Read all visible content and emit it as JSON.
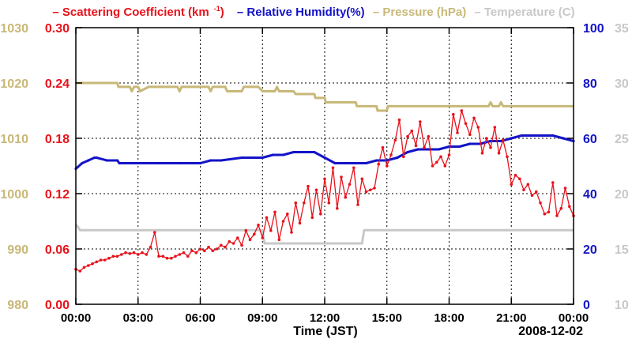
{
  "chart_data": {
    "type": "line",
    "title": "",
    "legend": [
      {
        "label": "– Scattering Coefficient (km",
        "sup": "-1",
        "tail": ")",
        "color": "#e8121b"
      },
      {
        "label": "– Relative Humidity(%)",
        "color": "#1313c8"
      },
      {
        "label": "– Pressure (hPa)",
        "color": "#c8b878"
      },
      {
        "label": "– Temperature (C)",
        "color": "#c8c8c8"
      }
    ],
    "xlabel": "Time (JST)",
    "date_label": "2008-12-02",
    "x_ticks": [
      "00:00",
      "03:00",
      "06:00",
      "09:00",
      "12:00",
      "15:00",
      "18:00",
      "21:00",
      "00:00"
    ],
    "xlim_hours": [
      0,
      24
    ],
    "axes": {
      "pressure": {
        "ticks": [
          "980",
          "990",
          "1000",
          "1010",
          "1020",
          "1030"
        ],
        "range": [
          980,
          1030
        ],
        "color": "#c8b878"
      },
      "scattering": {
        "ticks": [
          "0.00",
          "0.06",
          "0.12",
          "0.18",
          "0.24",
          "0.30"
        ],
        "range": [
          0,
          0.3
        ],
        "color": "#e8121b"
      },
      "humidity": {
        "ticks": [
          "0",
          "20",
          "40",
          "60",
          "80",
          "100"
        ],
        "range": [
          0,
          100
        ],
        "color": "#1313c8"
      },
      "temperature": {
        "ticks": [
          "10",
          "15",
          "20",
          "25",
          "30",
          "35"
        ],
        "range": [
          10,
          35
        ],
        "color": "#c8c8c8"
      }
    },
    "series": [
      {
        "name": "Pressure (hPa)",
        "axis": "pressure",
        "color": "#c8b878",
        "x": [
          0,
          2,
          2.05,
          2.6,
          2.7,
          2.8,
          3.0,
          3.1,
          3.5,
          4.9,
          5.0,
          5.1,
          6.4,
          6.5,
          6.6,
          7.2,
          7.3,
          8.0,
          8.1,
          8.8,
          9.0,
          9.1,
          9.6,
          9.7,
          9.8,
          10.5,
          10.6,
          11.5,
          11.55,
          12.0,
          12.05,
          12.5,
          13.5,
          13.55,
          14.5,
          14.55,
          14.8,
          15.0,
          15.05,
          19.9,
          20.0,
          20.1,
          20.4,
          20.5,
          20.6,
          24
        ],
        "y": [
          1020,
          1020,
          1019.3,
          1019.3,
          1018.5,
          1019.3,
          1019.3,
          1018.5,
          1019.3,
          1019.3,
          1018.5,
          1019.3,
          1019.3,
          1018.5,
          1019.3,
          1019.3,
          1018.5,
          1018.5,
          1019.3,
          1019.3,
          1018.5,
          1018.5,
          1018.5,
          1019.3,
          1018.5,
          1018.5,
          1018.0,
          1018.0,
          1017.3,
          1017.3,
          1016.5,
          1016.5,
          1016.5,
          1015.8,
          1015.8,
          1015.0,
          1015.0,
          1015.0,
          1015.8,
          1015.8,
          1016.5,
          1015.8,
          1015.8,
          1016.5,
          1015.8,
          1015.8
        ]
      },
      {
        "name": "Temperature (C)",
        "axis": "temperature",
        "color": "#c8c8c8",
        "x": [
          0,
          0.1,
          0.2,
          9.0,
          9.1,
          9.5,
          9.6,
          13.8,
          13.9,
          24
        ],
        "y": [
          17.2,
          17.0,
          16.7,
          16.7,
          15.5,
          15.5,
          15.5,
          15.5,
          16.7,
          16.7
        ]
      },
      {
        "name": "Relative Humidity(%)",
        "axis": "humidity",
        "color": "#1313c8",
        "x": [
          0,
          0.3,
          0.6,
          0.9,
          1.0,
          1.5,
          2.0,
          2.1,
          3.0,
          4.0,
          5.0,
          6.0,
          6.5,
          7.0,
          8.0,
          8.5,
          9.0,
          9.5,
          10.0,
          10.5,
          11.0,
          11.5,
          12.0,
          12.5,
          13.0,
          13.5,
          14.0,
          14.5,
          15.0,
          15.5,
          16.0,
          16.5,
          17.0,
          17.5,
          18.0,
          18.5,
          19.0,
          19.5,
          20.0,
          20.5,
          21.0,
          21.5,
          22.0,
          22.5,
          23.0,
          23.5,
          24
        ],
        "y": [
          49,
          51,
          52,
          53,
          53,
          52,
          52,
          51,
          51,
          51,
          51,
          51,
          52,
          52,
          53,
          53,
          53,
          54,
          54,
          55,
          55,
          55,
          53,
          51,
          51,
          51,
          51,
          52,
          52,
          53,
          55,
          56,
          56,
          56,
          57,
          57,
          58,
          58,
          59,
          59,
          60,
          61,
          61,
          61,
          61,
          60,
          59
        ]
      },
      {
        "name": "Scattering Coefficient (km-1)",
        "axis": "scattering",
        "color": "#e8121b",
        "x": [
          0.0,
          0.2,
          0.4,
          0.6,
          0.8,
          1.0,
          1.2,
          1.4,
          1.6,
          1.8,
          2.0,
          2.2,
          2.4,
          2.6,
          2.8,
          3.0,
          3.2,
          3.4,
          3.6,
          3.8,
          4.0,
          4.2,
          4.4,
          4.6,
          4.8,
          5.0,
          5.2,
          5.4,
          5.6,
          5.8,
          6.0,
          6.2,
          6.4,
          6.6,
          6.8,
          7.0,
          7.2,
          7.4,
          7.6,
          7.8,
          8.0,
          8.2,
          8.4,
          8.6,
          8.8,
          9.0,
          9.2,
          9.4,
          9.6,
          9.8,
          10.0,
          10.2,
          10.4,
          10.6,
          10.8,
          11.0,
          11.2,
          11.4,
          11.6,
          11.8,
          12.0,
          12.2,
          12.4,
          12.6,
          12.8,
          13.0,
          13.2,
          13.4,
          13.6,
          13.8,
          14.0,
          14.2,
          14.4,
          14.6,
          14.8,
          15.0,
          15.2,
          15.4,
          15.6,
          15.8,
          16.0,
          16.2,
          16.4,
          16.6,
          16.8,
          17.0,
          17.2,
          17.4,
          17.6,
          17.8,
          18.0,
          18.2,
          18.4,
          18.6,
          18.8,
          19.0,
          19.2,
          19.4,
          19.6,
          19.8,
          20.0,
          20.2,
          20.4,
          20.6,
          20.8,
          21.0,
          21.2,
          21.4,
          21.6,
          21.8,
          22.0,
          22.2,
          22.4,
          22.6,
          22.8,
          23.0,
          23.2,
          23.4,
          23.6,
          23.8,
          24.0
        ],
        "y": [
          0.038,
          0.036,
          0.04,
          0.042,
          0.044,
          0.046,
          0.048,
          0.048,
          0.05,
          0.052,
          0.052,
          0.054,
          0.056,
          0.055,
          0.056,
          0.054,
          0.056,
          0.054,
          0.062,
          0.078,
          0.052,
          0.052,
          0.05,
          0.05,
          0.052,
          0.054,
          0.056,
          0.052,
          0.058,
          0.056,
          0.06,
          0.058,
          0.062,
          0.058,
          0.06,
          0.064,
          0.062,
          0.068,
          0.066,
          0.072,
          0.064,
          0.08,
          0.07,
          0.076,
          0.086,
          0.072,
          0.094,
          0.08,
          0.1,
          0.07,
          0.09,
          0.098,
          0.078,
          0.11,
          0.088,
          0.11,
          0.128,
          0.094,
          0.124,
          0.098,
          0.136,
          0.11,
          0.148,
          0.104,
          0.138,
          0.116,
          0.13,
          0.148,
          0.108,
          0.136,
          0.122,
          0.124,
          0.126,
          0.152,
          0.17,
          0.15,
          0.162,
          0.178,
          0.2,
          0.16,
          0.182,
          0.188,
          0.172,
          0.198,
          0.17,
          0.182,
          0.15,
          0.154,
          0.16,
          0.15,
          0.162,
          0.206,
          0.186,
          0.21,
          0.196,
          0.184,
          0.202,
          0.192,
          0.164,
          0.18,
          0.17,
          0.192,
          0.164,
          0.178,
          0.16,
          0.13,
          0.14,
          0.136,
          0.124,
          0.13,
          0.118,
          0.122,
          0.11,
          0.098,
          0.1,
          0.132,
          0.096,
          0.104,
          0.126,
          0.106,
          0.096
        ]
      }
    ]
  }
}
